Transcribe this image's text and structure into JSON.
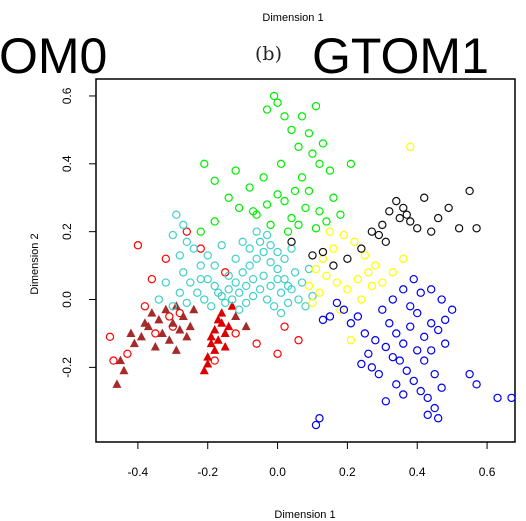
{
  "page": {
    "top_label": "Dimension 1",
    "left_title_fragment": "OM0",
    "panel_label": "(b)",
    "right_title": "GTOM1"
  },
  "chart_data": {
    "type": "scatter",
    "xlabel": "Dimension 1",
    "ylabel": "Dimension 2",
    "xlim": [
      -0.52,
      0.68
    ],
    "ylim": [
      -0.42,
      0.65
    ],
    "xticks": [
      -0.4,
      -0.2,
      0.0,
      0.2,
      0.4,
      0.6
    ],
    "yticks": [
      -0.2,
      0.0,
      0.2,
      0.4,
      0.6
    ],
    "xtick_labels": [
      "-0.4",
      "-0.2",
      "0.0",
      "0.2",
      "0.4",
      "0.6"
    ],
    "ytick_labels": [
      "-0.2",
      "0.0",
      "0.2",
      "0.4",
      "0.6"
    ],
    "grid": false,
    "legend": "none",
    "series": [
      {
        "color": "#ff0000",
        "marker": "circle",
        "points": [
          [
            -0.38,
            -0.02
          ],
          [
            -0.36,
            0.06
          ],
          [
            -0.32,
            0.12
          ],
          [
            -0.26,
            0.2
          ],
          [
            -0.48,
            -0.11
          ],
          [
            -0.43,
            -0.16
          ],
          [
            -0.35,
            -0.1
          ],
          [
            -0.31,
            -0.05
          ],
          [
            -0.18,
            -0.18
          ],
          [
            -0.12,
            -0.1
          ],
          [
            -0.06,
            -0.13
          ],
          [
            0.0,
            -0.16
          ],
          [
            0.02,
            -0.08
          ],
          [
            0.06,
            -0.12
          ],
          [
            -0.28,
            -0.04
          ],
          [
            -0.15,
            0.08
          ],
          [
            -0.22,
            0.15
          ],
          [
            -0.4,
            0.16
          ],
          [
            -0.3,
            -0.08
          ],
          [
            -0.47,
            -0.18
          ]
        ]
      },
      {
        "color": "#dd0000",
        "marker": "triangle",
        "points": [
          [
            -0.21,
            -0.21
          ],
          [
            -0.2,
            -0.17
          ],
          [
            -0.19,
            -0.13
          ],
          [
            -0.18,
            -0.09
          ],
          [
            -0.17,
            -0.06
          ],
          [
            -0.16,
            -0.04
          ],
          [
            -0.15,
            -0.1
          ],
          [
            -0.14,
            -0.08
          ],
          [
            -0.2,
            -0.19
          ],
          [
            -0.18,
            -0.15
          ],
          [
            -0.19,
            -0.11
          ],
          [
            -0.17,
            -0.12
          ],
          [
            -0.16,
            -0.07
          ],
          [
            -0.15,
            -0.14
          ],
          [
            -0.13,
            -0.02
          ]
        ]
      },
      {
        "color": "#a52a2a",
        "marker": "triangle",
        "points": [
          [
            -0.45,
            -0.18
          ],
          [
            -0.46,
            -0.25
          ],
          [
            -0.44,
            -0.21
          ],
          [
            -0.41,
            -0.13
          ],
          [
            -0.39,
            -0.11
          ],
          [
            -0.37,
            -0.08
          ],
          [
            -0.35,
            -0.14
          ],
          [
            -0.34,
            -0.06
          ],
          [
            -0.33,
            -0.1
          ],
          [
            -0.31,
            -0.12
          ],
          [
            -0.3,
            -0.07
          ],
          [
            -0.29,
            -0.15
          ],
          [
            -0.28,
            -0.09
          ],
          [
            -0.27,
            -0.05
          ],
          [
            -0.26,
            -0.11
          ],
          [
            -0.25,
            -0.08
          ],
          [
            -0.24,
            -0.03
          ],
          [
            -0.36,
            -0.04
          ],
          [
            -0.38,
            -0.07
          ],
          [
            -0.32,
            -0.03
          ],
          [
            -0.42,
            -0.1
          ],
          [
            -0.29,
            -0.02
          ],
          [
            -0.12,
            -0.05
          ],
          [
            -0.09,
            -0.08
          ]
        ]
      },
      {
        "color": "#40d0c8",
        "marker": "circle",
        "points": [
          [
            -0.29,
            0.25
          ],
          [
            -0.27,
            0.22
          ],
          [
            -0.3,
            0.19
          ],
          [
            -0.26,
            0.17
          ],
          [
            -0.28,
            0.13
          ],
          [
            -0.24,
            0.15
          ],
          [
            -0.22,
            0.1
          ],
          [
            -0.2,
            0.06
          ],
          [
            -0.18,
            0.04
          ],
          [
            -0.16,
            0.01
          ],
          [
            -0.14,
            0.03
          ],
          [
            -0.12,
            0.05
          ],
          [
            -0.1,
            0.08
          ],
          [
            -0.08,
            0.1
          ],
          [
            -0.06,
            0.12
          ],
          [
            -0.04,
            0.14
          ],
          [
            -0.02,
            0.11
          ],
          [
            0.0,
            0.09
          ],
          [
            0.02,
            0.06
          ],
          [
            0.04,
            0.03
          ],
          [
            0.06,
            0.0
          ],
          [
            0.08,
            -0.02
          ],
          [
            0.1,
            0.01
          ],
          [
            -0.25,
            0.05
          ],
          [
            -0.23,
            0.02
          ],
          [
            -0.21,
            0.0
          ],
          [
            -0.19,
            -0.02
          ],
          [
            -0.17,
            0.02
          ],
          [
            -0.15,
            -0.01
          ],
          [
            -0.13,
            0.0
          ],
          [
            -0.11,
            0.02
          ],
          [
            -0.09,
            0.04
          ],
          [
            -0.07,
            0.06
          ],
          [
            -0.05,
            0.03
          ],
          [
            -0.03,
            0.0
          ],
          [
            -0.01,
            -0.02
          ],
          [
            0.01,
            0.02
          ],
          [
            0.03,
            0.04
          ],
          [
            0.05,
            0.08
          ],
          [
            -0.27,
            0.08
          ],
          [
            -0.32,
            0.05
          ],
          [
            -0.34,
            0.0
          ],
          [
            -0.3,
            -0.02
          ],
          [
            -0.28,
            0.02
          ],
          [
            -0.26,
            -0.01
          ],
          [
            -0.08,
            0.15
          ],
          [
            -0.05,
            0.17
          ],
          [
            -0.02,
            0.16
          ],
          [
            0.0,
            0.14
          ],
          [
            0.02,
            0.12
          ],
          [
            -0.12,
            0.12
          ],
          [
            -0.1,
            0.17
          ],
          [
            -0.06,
            0.2
          ],
          [
            -0.03,
            0.19
          ],
          [
            0.04,
            0.15
          ],
          [
            -0.18,
            0.1
          ],
          [
            -0.2,
            0.13
          ],
          [
            -0.16,
            0.16
          ],
          [
            0.07,
            0.05
          ],
          [
            0.09,
            0.09
          ],
          [
            -0.02,
            0.04
          ],
          [
            -0.04,
            0.07
          ],
          [
            0.0,
            0.06
          ],
          [
            -0.07,
            0.01
          ],
          [
            -0.09,
            -0.01
          ],
          [
            -0.11,
            -0.03
          ],
          [
            0.01,
            -0.04
          ],
          [
            0.03,
            -0.01
          ],
          [
            -0.14,
            0.07
          ],
          [
            -0.22,
            0.06
          ]
        ]
      },
      {
        "color": "#00ee00",
        "marker": "circle",
        "points": [
          [
            -0.03,
            0.56
          ],
          [
            -0.01,
            0.6
          ],
          [
            0.0,
            0.58
          ],
          [
            0.02,
            0.54
          ],
          [
            0.04,
            0.5
          ],
          [
            0.07,
            0.54
          ],
          [
            0.09,
            0.49
          ],
          [
            0.11,
            0.57
          ],
          [
            0.06,
            0.45
          ],
          [
            0.1,
            0.43
          ],
          [
            0.12,
            0.4
          ],
          [
            0.01,
            0.4
          ],
          [
            0.13,
            0.46
          ],
          [
            -0.21,
            0.4
          ],
          [
            -0.18,
            0.35
          ],
          [
            -0.12,
            0.38
          ],
          [
            -0.08,
            0.33
          ],
          [
            -0.04,
            0.36
          ],
          [
            0.0,
            0.31
          ],
          [
            -0.14,
            0.3
          ],
          [
            -0.11,
            0.27
          ],
          [
            -0.07,
            0.26
          ],
          [
            -0.02,
            0.22
          ],
          [
            0.04,
            0.24
          ],
          [
            0.06,
            0.22
          ],
          [
            0.08,
            0.27
          ],
          [
            0.11,
            0.21
          ],
          [
            0.14,
            0.23
          ],
          [
            0.18,
            0.25
          ],
          [
            0.21,
            0.4
          ],
          [
            0.03,
            0.2
          ],
          [
            -0.06,
            0.25
          ],
          [
            -0.18,
            0.23
          ],
          [
            -0.22,
            0.2
          ],
          [
            0.09,
            0.32
          ],
          [
            0.16,
            0.3
          ],
          [
            0.02,
            0.29
          ],
          [
            0.05,
            0.32
          ],
          [
            0.12,
            0.26
          ],
          [
            -0.03,
            0.28
          ],
          [
            0.07,
            0.36
          ],
          [
            0.15,
            0.38
          ]
        ]
      },
      {
        "color": "#ffff00",
        "marker": "circle",
        "points": [
          [
            0.11,
            0.09
          ],
          [
            0.14,
            0.07
          ],
          [
            0.17,
            0.05
          ],
          [
            0.2,
            0.03
          ],
          [
            0.23,
            0.06
          ],
          [
            0.26,
            0.08
          ],
          [
            0.13,
            0.12
          ],
          [
            0.16,
            0.15
          ],
          [
            0.19,
            0.19
          ],
          [
            0.22,
            0.17
          ],
          [
            0.25,
            0.13
          ],
          [
            0.28,
            0.1
          ],
          [
            0.3,
            0.05
          ],
          [
            0.33,
            0.08
          ],
          [
            0.36,
            0.12
          ],
          [
            0.38,
            0.45
          ],
          [
            0.1,
            -0.01
          ],
          [
            0.18,
            -0.03
          ],
          [
            0.21,
            -0.12
          ],
          [
            0.12,
            0.02
          ],
          [
            0.24,
            0.0
          ],
          [
            0.27,
            0.04
          ],
          [
            0.15,
            0.2
          ],
          [
            0.09,
            0.04
          ]
        ]
      },
      {
        "color": "#111111",
        "marker": "circle",
        "points": [
          [
            0.3,
            0.22
          ],
          [
            0.32,
            0.26
          ],
          [
            0.34,
            0.29
          ],
          [
            0.35,
            0.24
          ],
          [
            0.36,
            0.27
          ],
          [
            0.37,
            0.25
          ],
          [
            0.38,
            0.23
          ],
          [
            0.4,
            0.21
          ],
          [
            0.29,
            0.19
          ],
          [
            0.31,
            0.17
          ],
          [
            0.27,
            0.2
          ],
          [
            0.24,
            0.15
          ],
          [
            0.2,
            0.12
          ],
          [
            0.16,
            0.1
          ],
          [
            0.13,
            0.14
          ],
          [
            0.1,
            0.13
          ],
          [
            0.04,
            0.17
          ],
          [
            0.46,
            0.24
          ],
          [
            0.49,
            0.27
          ],
          [
            0.52,
            0.21
          ],
          [
            0.55,
            0.32
          ],
          [
            0.57,
            0.21
          ],
          [
            0.42,
            0.3
          ],
          [
            0.44,
            0.2
          ]
        ]
      },
      {
        "color": "#0000ee",
        "marker": "circle",
        "points": [
          [
            0.3,
            -0.03
          ],
          [
            0.32,
            -0.07
          ],
          [
            0.34,
            -0.1
          ],
          [
            0.36,
            -0.13
          ],
          [
            0.38,
            -0.08
          ],
          [
            0.4,
            -0.04
          ],
          [
            0.42,
            -0.11
          ],
          [
            0.44,
            -0.15
          ],
          [
            0.46,
            -0.09
          ],
          [
            0.48,
            -0.06
          ],
          [
            0.35,
            -0.18
          ],
          [
            0.37,
            -0.21
          ],
          [
            0.39,
            -0.24
          ],
          [
            0.41,
            -0.27
          ],
          [
            0.43,
            -0.29
          ],
          [
            0.45,
            -0.32
          ],
          [
            0.46,
            -0.35
          ],
          [
            0.43,
            -0.34
          ],
          [
            0.31,
            -0.14
          ],
          [
            0.33,
            -0.17
          ],
          [
            0.29,
            -0.22
          ],
          [
            0.27,
            -0.2
          ],
          [
            0.25,
            -0.1
          ],
          [
            0.23,
            -0.05
          ],
          [
            0.21,
            -0.07
          ],
          [
            0.19,
            -0.03
          ],
          [
            0.17,
            -0.01
          ],
          [
            0.15,
            -0.05
          ],
          [
            0.13,
            -0.06
          ],
          [
            0.41,
            0.02
          ],
          [
            0.44,
            0.03
          ],
          [
            0.47,
            0.0
          ],
          [
            0.5,
            -0.03
          ],
          [
            0.39,
            0.06
          ],
          [
            0.36,
            0.03
          ],
          [
            0.33,
            0.0
          ],
          [
            0.42,
            -0.18
          ],
          [
            0.45,
            -0.22
          ],
          [
            0.47,
            -0.26
          ],
          [
            0.55,
            -0.22
          ],
          [
            0.57,
            -0.25
          ],
          [
            0.63,
            -0.29
          ],
          [
            0.67,
            -0.29
          ],
          [
            0.12,
            -0.35
          ],
          [
            0.11,
            -0.37
          ],
          [
            0.26,
            -0.16
          ],
          [
            0.28,
            -0.12
          ],
          [
            0.4,
            -0.15
          ],
          [
            0.38,
            -0.02
          ],
          [
            0.34,
            -0.25
          ],
          [
            0.36,
            -0.28
          ],
          [
            0.44,
            -0.07
          ],
          [
            0.48,
            -0.13
          ],
          [
            0.24,
            -0.19
          ],
          [
            0.31,
            -0.3
          ]
        ]
      }
    ]
  }
}
